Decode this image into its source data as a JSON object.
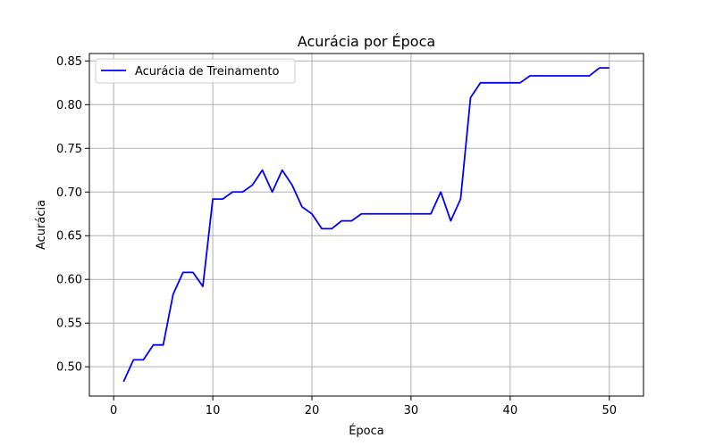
{
  "chart_data": {
    "type": "line",
    "title": "Acurácia por Época",
    "xlabel": "Época",
    "ylabel": "Acurácia",
    "xlim": [
      -2.45,
      53.45
    ],
    "ylim": [
      0.4665,
      0.8585
    ],
    "xticks": [
      0,
      10,
      20,
      30,
      40,
      50
    ],
    "yticks": [
      0.5,
      0.55,
      0.6,
      0.65,
      0.7,
      0.75,
      0.8,
      0.85
    ],
    "grid": true,
    "legend_position": "top-left",
    "series": [
      {
        "name": "Acurácia de Treinamento",
        "color": "#0000ff",
        "x": [
          1,
          2,
          3,
          4,
          5,
          6,
          7,
          8,
          9,
          10,
          11,
          12,
          13,
          14,
          15,
          16,
          17,
          18,
          19,
          20,
          21,
          22,
          23,
          24,
          25,
          26,
          27,
          28,
          29,
          30,
          31,
          32,
          33,
          34,
          35,
          36,
          37,
          38,
          39,
          40,
          41,
          42,
          43,
          44,
          45,
          46,
          47,
          48,
          49,
          50
        ],
        "y": [
          0.483,
          0.508,
          0.508,
          0.525,
          0.525,
          0.583,
          0.608,
          0.608,
          0.592,
          0.692,
          0.692,
          0.7,
          0.7,
          0.708,
          0.725,
          0.7,
          0.725,
          0.708,
          0.683,
          0.675,
          0.658,
          0.658,
          0.667,
          0.667,
          0.675,
          0.675,
          0.675,
          0.675,
          0.675,
          0.675,
          0.675,
          0.675,
          0.7,
          0.667,
          0.692,
          0.808,
          0.825,
          0.825,
          0.825,
          0.825,
          0.825,
          0.833,
          0.833,
          0.833,
          0.833,
          0.833,
          0.833,
          0.833,
          0.842,
          0.842
        ]
      }
    ]
  }
}
